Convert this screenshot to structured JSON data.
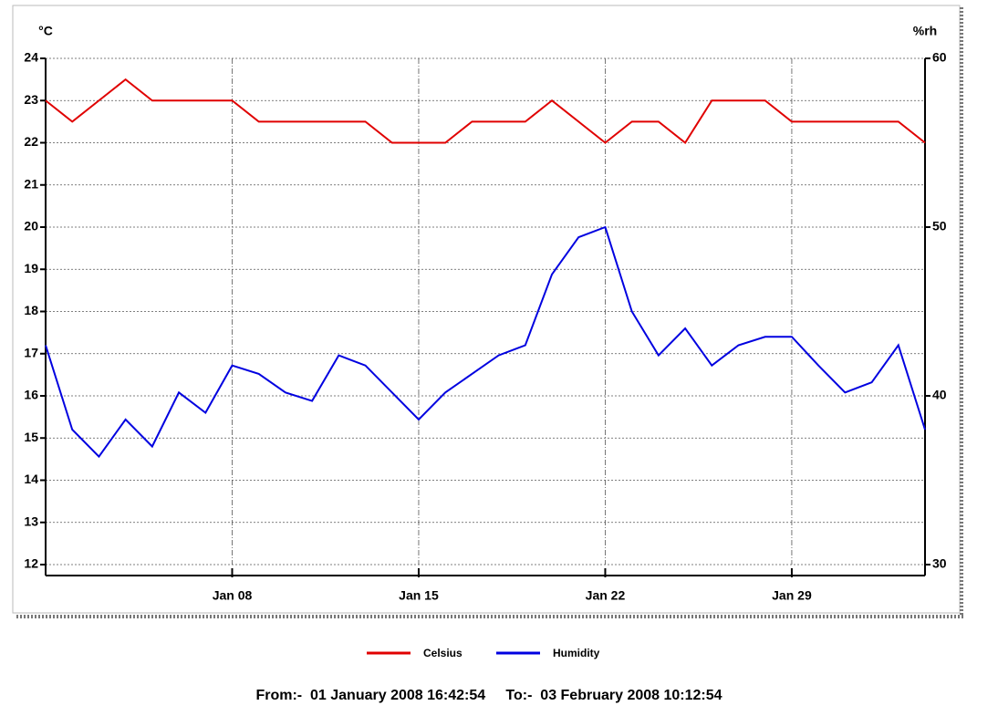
{
  "chart_data": {
    "type": "line",
    "y_label": "°C",
    "y2_label": "%rh",
    "subtitle": "From:-  01 January 2008 16:42:54     To:-  03 February 2008 10:12:54",
    "x": [
      "Jan 01",
      "Jan 02",
      "Jan 03",
      "Jan 04",
      "Jan 05",
      "Jan 06",
      "Jan 07",
      "Jan 08",
      "Jan 09",
      "Jan 10",
      "Jan 11",
      "Jan 12",
      "Jan 13",
      "Jan 14",
      "Jan 15",
      "Jan 16",
      "Jan 17",
      "Jan 18",
      "Jan 19",
      "Jan 20",
      "Jan 21",
      "Jan 22",
      "Jan 23",
      "Jan 24",
      "Jan 25",
      "Jan 26",
      "Jan 27",
      "Jan 28",
      "Jan 29",
      "Jan 30",
      "Jan 31",
      "Feb 01",
      "Feb 02",
      "Feb 03"
    ],
    "xlim": [
      "Jan 01",
      "Feb 03"
    ],
    "xticks": [
      "Jan 08",
      "Jan 15",
      "Jan 22",
      "Jan 29"
    ],
    "ylim": [
      12,
      24
    ],
    "yticks": [
      12,
      13,
      14,
      15,
      16,
      17,
      18,
      19,
      20,
      21,
      22,
      23,
      24
    ],
    "y2lim": [
      30,
      60
    ],
    "y2ticks": [
      30,
      40,
      50,
      60
    ],
    "grid": true,
    "legend": "bottom",
    "series": [
      {
        "name": "Celsius",
        "color": "#e00000",
        "values": [
          23,
          22.5,
          23,
          23.5,
          23,
          23,
          23,
          23,
          22.5,
          22.5,
          22.5,
          22.5,
          22.5,
          22,
          22,
          22,
          22.5,
          22.5,
          22.5,
          23,
          22.5,
          22,
          22.5,
          22.5,
          22,
          23,
          23,
          23,
          22.5,
          22.5,
          22.5,
          22.5,
          22.5,
          22
        ]
      },
      {
        "name": "Humidity",
        "color": "#0000e0",
        "axis": "y2",
        "values": [
          43,
          38,
          36.4,
          38.6,
          37,
          40.2,
          39,
          41.8,
          41.3,
          40.2,
          39.7,
          42.4,
          41.8,
          40.2,
          38.6,
          40.2,
          41.3,
          42.4,
          43,
          47.2,
          49.4,
          50,
          45,
          42.4,
          44,
          41.8,
          43,
          43.5,
          43.5,
          41.8,
          40.2,
          40.8,
          43,
          38
        ]
      }
    ]
  }
}
